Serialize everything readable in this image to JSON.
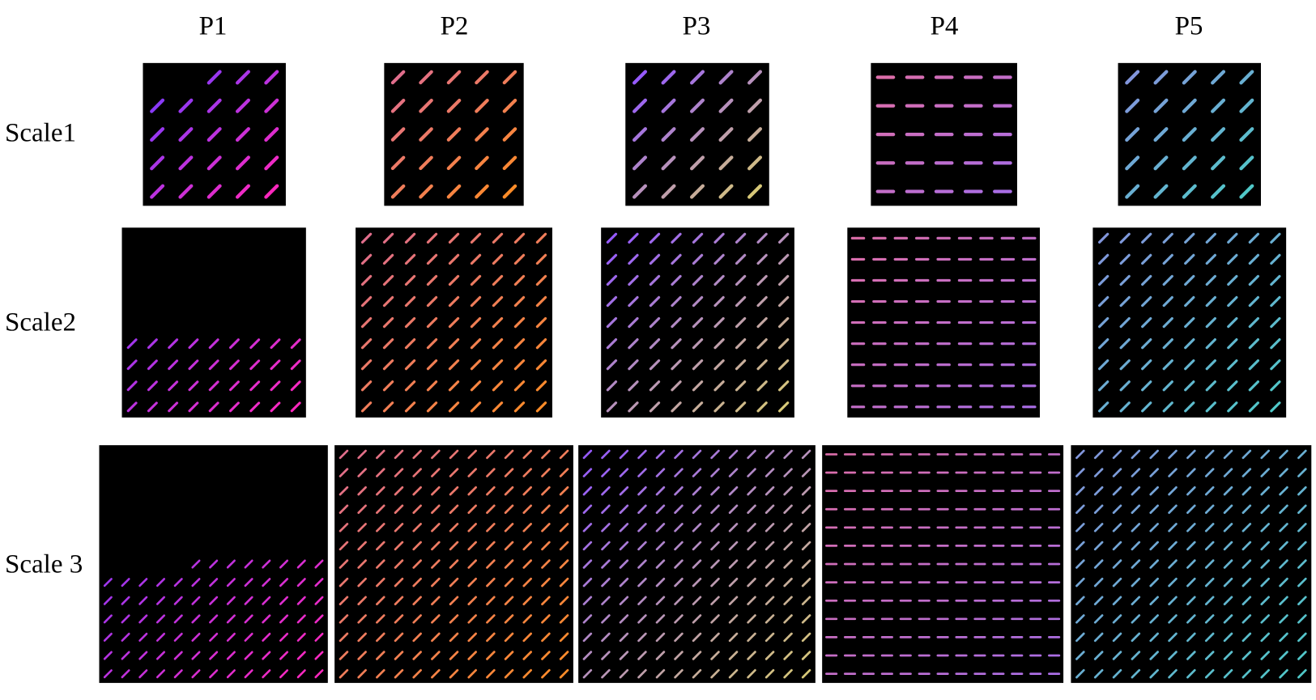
{
  "columns": [
    "P1",
    "P2",
    "P3",
    "P4",
    "P5"
  ],
  "rows": [
    "Scale1",
    "Scale2",
    "Scale 3"
  ]
}
